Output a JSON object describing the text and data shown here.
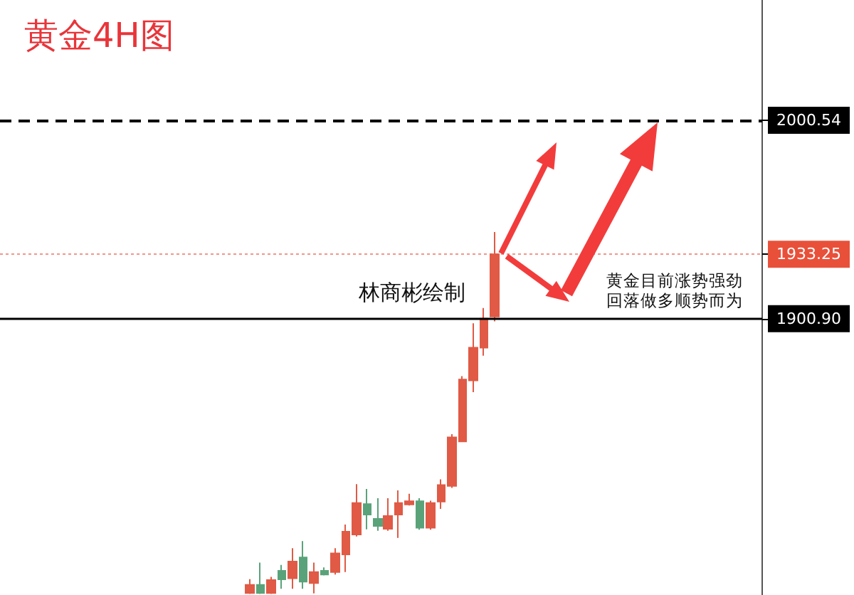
{
  "chart_data": {
    "type": "candlestick",
    "title": "黄金4H图",
    "categories": [
      null,
      null,
      null,
      null,
      null,
      null,
      null,
      null,
      null,
      null,
      null,
      null,
      null,
      null,
      null,
      null,
      null,
      null,
      null,
      null,
      null,
      null,
      null,
      null,
      null,
      null,
      null,
      null,
      null,
      null,
      null,
      null,
      null,
      null,
      null,
      null,
      null,
      null,
      null,
      null,
      null,
      null,
      null,
      null,
      null,
      null,
      null,
      null,
      null,
      null,
      null,
      null,
      null,
      null,
      null,
      null,
      null,
      null,
      null,
      null,
      null,
      null,
      null,
      null,
      null,
      null,
      null,
      null,
      null,
      null,
      null,
      null
    ],
    "ohlc": [
      null,
      null,
      null,
      null,
      null,
      null,
      null,
      null,
      null,
      null,
      null,
      null,
      null,
      null,
      null,
      null,
      null,
      null,
      null,
      null,
      null,
      null,
      null,
      [
        1763.0,
        1770.0,
        1762.5,
        1767.1
      ],
      [
        1767.1,
        1778.3,
        1762.5,
        1763.0
      ],
      [
        1763.0,
        1771.1,
        1762.5,
        1769.5
      ],
      [
        1774.2,
        1777.1,
        1765.1,
        1769.9
      ],
      [
        1770.4,
        1785.5,
        1765.1,
        1778.8
      ],
      [
        1780.9,
        1789.1,
        1765.1,
        1768.7
      ],
      [
        1768.0,
        1778.3,
        1762.8,
        1773.5
      ],
      [
        1774.2,
        1775.9,
        1771.8,
        1772.3
      ],
      [
        1773.5,
        1785.5,
        1772.3,
        1782.9
      ],
      [
        1782.4,
        1797.4,
        1773.5,
        1793.8
      ],
      [
        1792.4,
        1817.7,
        1791.4,
        1808.2
      ],
      [
        1807.7,
        1815.3,
        1795.0,
        1802.4
      ],
      [
        1800.3,
        1810.6,
        1794.3,
        1796.7
      ],
      [
        1795.3,
        1810.6,
        1794.3,
        1801.7
      ],
      [
        1802.4,
        1814.6,
        1790.7,
        1808.2
      ],
      [
        1807.5,
        1812.9,
        1807.0,
        1809.1
      ],
      [
        1809.1,
        1810.6,
        1794.8,
        1795.8
      ],
      [
        1795.8,
        1809.4,
        1794.8,
        1808.2
      ],
      [
        1808.9,
        1820.1,
        1805.3,
        1817.3
      ],
      [
        1816.8,
        1842.8,
        1815.8,
        1841.2
      ],
      [
        1839.2,
        1872.0,
        1838.8,
        1870.3
      ],
      [
        1869.8,
        1898.5,
        1863.9,
        1886.3
      ],
      [
        1886.3,
        1906.2,
        1882.3,
        1900.9
      ],
      [
        1901.9,
        1944.4,
        1899.5,
        1933.25
      ],
      null,
      null,
      null,
      null,
      null,
      null,
      null,
      null,
      null,
      null,
      null,
      null,
      null,
      null,
      null,
      null,
      null,
      null,
      null,
      null,
      null,
      null,
      null,
      null,
      null
    ],
    "colors": [
      null,
      null,
      null,
      null,
      null,
      null,
      null,
      null,
      null,
      null,
      null,
      null,
      null,
      null,
      null,
      null,
      null,
      null,
      null,
      null,
      null,
      null,
      null,
      "#e05a45",
      "#5aa37a",
      "#e05a45",
      "#5aa37a",
      "#e05a45",
      "#5aa37a",
      "#e05a45",
      "#5aa37a",
      "#e05a45",
      "#e05a45",
      "#e05a45",
      "#5aa37a",
      "#5aa37a",
      "#e05a45",
      "#e05a45",
      "#e05a45",
      "#5aa37a",
      "#e05a45",
      "#e05a45",
      "#e05a45",
      "#e05a45",
      "#e05a45",
      "#e05a45",
      "#e05a45",
      null,
      null,
      null,
      null,
      null,
      null,
      null,
      null,
      null,
      null,
      null,
      null,
      null,
      null,
      null,
      null,
      null,
      null,
      null,
      null,
      null,
      null,
      null,
      null,
      null
    ],
    "ylim": [
      1762,
      2061
    ],
    "yticks": [
      2000.54,
      1933.25,
      {
        "value": 1900.9,
        "label": "1900.90"
      }
    ],
    "tick_labels": "y",
    "grid": false,
    "ref_lines": [
      {
        "axis": "y",
        "value": 2000.54,
        "color": "#000000",
        "line_style": "dashed"
      },
      {
        "axis": "y",
        "value": 1933.25,
        "color": "#e8503a",
        "line_style": "dotted"
      },
      {
        "axis": "y",
        "value": 1900.9,
        "color": "#000000",
        "line_style": "solid"
      }
    ],
    "annotations": [
      "林商彬绘制",
      "黄金目前涨势强劲",
      "回落做多顺势而为"
    ]
  }
}
